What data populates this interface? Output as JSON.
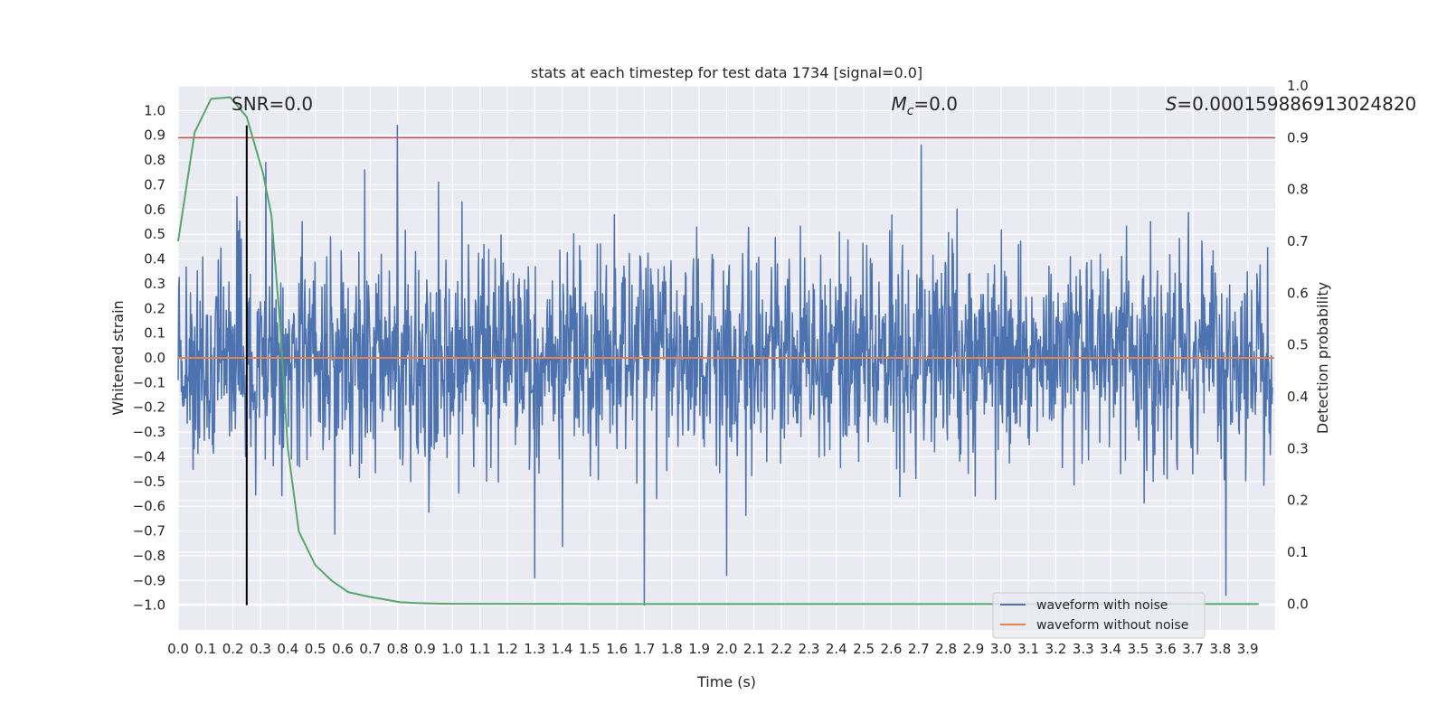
{
  "chart_data": {
    "type": "line",
    "title": "stats at each timestep for test data 1734 [signal=0.0]",
    "xlabel": "Time (s)",
    "ylabel": "Whitened strain",
    "y2label": "Detection probability",
    "xlim": [
      0.0,
      4.0
    ],
    "ylim": [
      -1.1,
      1.1
    ],
    "y2lim": [
      -0.05,
      1.0
    ],
    "x_ticks": [
      "0.0",
      "0.1",
      "0.2",
      "0.3",
      "0.4",
      "0.5",
      "0.6",
      "0.7",
      "0.8",
      "0.9",
      "1.0",
      "1.1",
      "1.2",
      "1.3",
      "1.4",
      "1.5",
      "1.6",
      "1.7",
      "1.8",
      "1.9",
      "2.0",
      "2.1",
      "2.2",
      "2.3",
      "2.4",
      "2.5",
      "2.6",
      "2.7",
      "2.8",
      "2.9",
      "3.0",
      "3.1",
      "3.2",
      "3.3",
      "3.4",
      "3.5",
      "3.6",
      "3.7",
      "3.8",
      "3.9"
    ],
    "y_ticks": [
      "1.0",
      "0.9",
      "0.8",
      "0.7",
      "0.6",
      "0.5",
      "0.4",
      "0.3",
      "0.2",
      "0.1",
      "0.0",
      "-0.1",
      "-0.2",
      "-0.3",
      "-0.4",
      "-0.5",
      "-0.6",
      "-0.7",
      "-0.8",
      "-0.9",
      "-1.0"
    ],
    "y2_ticks": [
      "1.0",
      "0.9",
      "0.8",
      "0.7",
      "0.6",
      "0.5",
      "0.4",
      "0.3",
      "0.2",
      "0.1",
      "0.0"
    ],
    "series": [
      {
        "name": "waveform with noise",
        "color": "#4c72b0",
        "kind": "noise",
        "samples": 2048,
        "range": [
          -1.0,
          0.94
        ],
        "peaks": [
          {
            "x": 0.8,
            "y": 0.94
          },
          {
            "x": 2.71,
            "y": 0.86
          },
          {
            "x": 0.32,
            "y": 0.79
          },
          {
            "x": 0.68,
            "y": 0.76
          },
          {
            "x": 1.3,
            "y": -0.89
          },
          {
            "x": 1.7,
            "y": -1.0
          },
          {
            "x": 3.82,
            "y": -0.96
          },
          {
            "x": 2.0,
            "y": -0.88
          }
        ]
      },
      {
        "name": "waveform without noise",
        "color": "#dd8452",
        "x": [
          0.0,
          4.0
        ],
        "y": [
          0.0,
          0.0
        ]
      },
      {
        "name": "detection probability",
        "color": "#55a868",
        "axis": "y2",
        "x": [
          0.0,
          0.06,
          0.12,
          0.19,
          0.25,
          0.31,
          0.34,
          0.37,
          0.4,
          0.44,
          0.5,
          0.56,
          0.62,
          0.69,
          0.75,
          0.81,
          0.87,
          0.94,
          1.0,
          1.5,
          2.0,
          2.5,
          3.0,
          3.5,
          3.94
        ],
        "y": [
          0.7,
          0.91,
          0.975,
          0.978,
          0.94,
          0.83,
          0.75,
          0.55,
          0.3,
          0.14,
          0.075,
          0.045,
          0.023,
          0.0145,
          0.009,
          0.0035,
          0.0018,
          0.0007,
          0.0003,
          0.0,
          0.0,
          0.0,
          0.0,
          0.0,
          0.0
        ]
      }
    ],
    "hlines": [
      {
        "name": "threshold",
        "color": "#c44e52",
        "axis": "y2",
        "y": 0.9
      }
    ],
    "vlines": [
      {
        "name": "trigger-time",
        "color": "#000000",
        "x": 0.25
      }
    ],
    "annotations": [
      {
        "name": "snr-annotation",
        "text": "SNR=0.0",
        "x": 0.2,
        "y": 0.94
      },
      {
        "name": "mc-annotation",
        "prefix_symbol": "M",
        "subscript": "c",
        "text": "=0.0",
        "x": 2.6,
        "y": 0.94
      },
      {
        "name": "s-annotation",
        "prefix_symbol": "S",
        "text": "=0.000159886913024820",
        "x": 3.6,
        "y": 0.94
      }
    ],
    "legend": {
      "placement": "lower-right",
      "entries": [
        "waveform with noise",
        "waveform without noise"
      ]
    },
    "colors": {
      "plot_bg": "#eaeaf2",
      "grid": "#ffffff",
      "text": "#262626"
    },
    "grid": true
  }
}
